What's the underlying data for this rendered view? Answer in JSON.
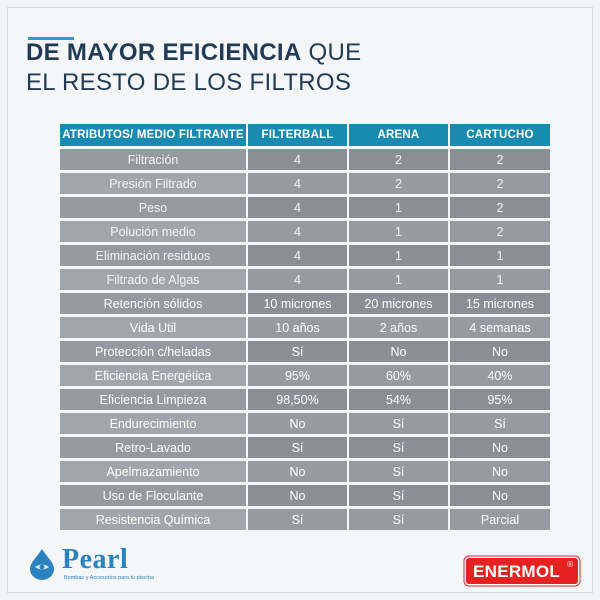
{
  "title": {
    "line1_bold": "DE MAYOR EFICIENCIA",
    "line1_rest": " QUE",
    "line2": "EL RESTO DE LOS FILTROS"
  },
  "table": {
    "headers": [
      "ATRIBUTOS/ MEDIO FILTRANTE",
      "FILTERBALL",
      "ARENA",
      "CARTUCHO"
    ],
    "rows": [
      {
        "attribute": "Filtración",
        "filterball": "4",
        "arena": "2",
        "cartucho": "2"
      },
      {
        "attribute": "Presión Filtrado",
        "filterball": "4",
        "arena": "2",
        "cartucho": "2"
      },
      {
        "attribute": "Peso",
        "filterball": "4",
        "arena": "1",
        "cartucho": "2"
      },
      {
        "attribute": "Polución medio",
        "filterball": "4",
        "arena": "1",
        "cartucho": "2"
      },
      {
        "attribute": "Eliminación residuos",
        "filterball": "4",
        "arena": "1",
        "cartucho": "1"
      },
      {
        "attribute": "Filtrado de Algas",
        "filterball": "4",
        "arena": "1",
        "cartucho": "1"
      },
      {
        "attribute": "Retención sólidos",
        "filterball": "10 micrones",
        "arena": "20 micrones",
        "cartucho": "15 micrones"
      },
      {
        "attribute": "Vida Util",
        "filterball": "10 años",
        "arena": "2 años",
        "cartucho": "4 semanas"
      },
      {
        "attribute": "Protección c/heladas",
        "filterball": "Sí",
        "arena": "No",
        "cartucho": "No"
      },
      {
        "attribute": "Eficiencia Energética",
        "filterball": "95%",
        "arena": "60%",
        "cartucho": "40%"
      },
      {
        "attribute": "Eficiencia Limpieza",
        "filterball": "98,50%",
        "arena": "54%",
        "cartucho": "95%"
      },
      {
        "attribute": "Endurecimiento",
        "filterball": "No",
        "arena": "Sí",
        "cartucho": "Sí"
      },
      {
        "attribute": "Retro-Lavado",
        "filterball": "Sí",
        "arena": "Sí",
        "cartucho": "No"
      },
      {
        "attribute": "Apelmazamiento",
        "filterball": "No",
        "arena": "Sí",
        "cartucho": "No"
      },
      {
        "attribute": "Uso de Floculante",
        "filterball": "No",
        "arena": "Sí",
        "cartucho": "No"
      },
      {
        "attribute": "Resistencia Química",
        "filterball": "Sí",
        "arena": "Sí",
        "cartucho": "Parcial"
      }
    ]
  },
  "logos": {
    "pearl_name": "Pearl",
    "pearl_tagline": "Bombas y Accesorios para tu piscina",
    "enermol_name": "ENERMOL",
    "enermol_mark": "®"
  },
  "colors": {
    "header_bg": "#1a8bb0",
    "title_color": "#1f3b58",
    "cell_bg": "#8b8f95",
    "enermol_red": "#e32221",
    "pearl_blue": "#2a82c0"
  }
}
